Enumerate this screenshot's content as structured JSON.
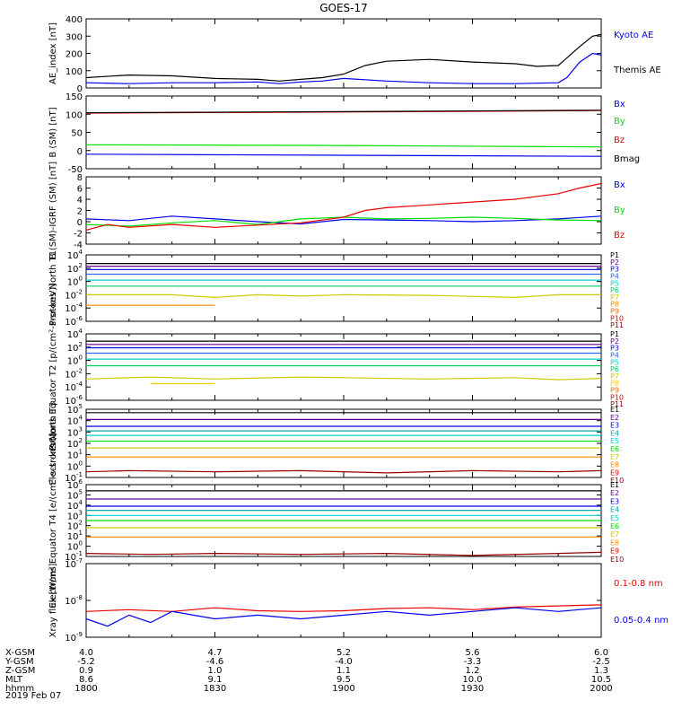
{
  "title": "GOES-17",
  "date": "2019 Feb 07",
  "colors": {
    "black": "#000000",
    "blue": "#0000ee",
    "green": "#00dd00",
    "red": "#ee0000",
    "cyan": "#00cccc",
    "teal": "#00aaaa",
    "yellow": "#cccc00",
    "orange": "#ff8800",
    "purple": "#660099",
    "darkred": "#990000"
  },
  "footer": {
    "row_labels": [
      "X-GSM",
      "Y-GSM",
      "Z-GSM",
      "MLT",
      "hhmm"
    ],
    "columns": [
      {
        "x": "1800",
        "values": [
          "4.0",
          "-5.2",
          "0.9",
          "8.6",
          "1800"
        ]
      },
      {
        "x": "1830",
        "values": [
          "4.7",
          "-4.6",
          "1.0",
          "9.1",
          "1830"
        ]
      },
      {
        "x": "1900",
        "values": [
          "5.2",
          "-4.0",
          "1.1",
          "9.5",
          "1900"
        ]
      },
      {
        "x": "1930",
        "values": [
          "5.6",
          "-3.3",
          "1.2",
          "10.0",
          "1930"
        ]
      },
      {
        "x": "2000",
        "values": [
          "6.0",
          "-2.5",
          "1.3",
          "10.5",
          "2000"
        ]
      }
    ]
  },
  "chart_data": [
    {
      "type": "line",
      "ylabel": "AE_index [nT]",
      "ylim": [
        0,
        400
      ],
      "scale": "linear",
      "ticks": [
        "0",
        "100",
        "200",
        "300",
        "400"
      ],
      "xlim": [
        "1800",
        "2000"
      ],
      "legend_position": "right",
      "series": [
        {
          "name": "Kyoto AE",
          "color": "#0000ee",
          "x": [
            "1800",
            "1810",
            "1820",
            "1830",
            "1840",
            "1845",
            "1850",
            "1855",
            "1900",
            "1910",
            "1920",
            "1930",
            "1940",
            "1950",
            "1952",
            "1955",
            "1958",
            "2000"
          ],
          "values": [
            30,
            25,
            30,
            30,
            35,
            25,
            35,
            40,
            55,
            40,
            30,
            25,
            25,
            30,
            60,
            150,
            200,
            190
          ]
        },
        {
          "name": "Themis AE",
          "color": "#000000",
          "x": [
            "1800",
            "1810",
            "1820",
            "1830",
            "1840",
            "1845",
            "1850",
            "1855",
            "1900",
            "1905",
            "1910",
            "1920",
            "1930",
            "1940",
            "1945",
            "1950",
            "1955",
            "1958",
            "2000"
          ],
          "values": [
            60,
            75,
            70,
            55,
            50,
            40,
            50,
            60,
            80,
            130,
            155,
            165,
            150,
            140,
            125,
            130,
            240,
            300,
            310
          ]
        }
      ]
    },
    {
      "type": "line",
      "ylabel": "B (SM) [nT]",
      "ylim": [
        -50,
        150
      ],
      "scale": "linear",
      "ticks": [
        "-50",
        "0",
        "50",
        "100",
        "150"
      ],
      "xlim": [
        "1800",
        "2000"
      ],
      "legend_position": "right",
      "series": [
        {
          "name": "Bx",
          "color": "#0000ee",
          "x": [
            "1800",
            "1900",
            "2000"
          ],
          "values": [
            -10,
            -13,
            -16
          ]
        },
        {
          "name": "By",
          "color": "#00dd00",
          "x": [
            "1800",
            "1900",
            "2000"
          ],
          "values": [
            16,
            14,
            10
          ]
        },
        {
          "name": "Bz",
          "color": "#ee0000",
          "x": [
            "1800",
            "1900",
            "2000"
          ],
          "values": [
            103,
            106,
            110
          ]
        },
        {
          "name": "Bmag",
          "color": "#000000",
          "x": [
            "1800",
            "1900",
            "2000"
          ],
          "values": [
            104,
            107,
            111
          ]
        }
      ]
    },
    {
      "type": "line",
      "ylabel": "B (SM)-IGRF (SM) [nT]",
      "ylim": [
        -4,
        8
      ],
      "scale": "linear",
      "ticks": [
        "-4",
        "-2",
        "0",
        "2",
        "4",
        "6",
        "8"
      ],
      "xlim": [
        "1800",
        "2000"
      ],
      "legend_position": "right",
      "series": [
        {
          "name": "Bx",
          "color": "#0000ee",
          "x": [
            "1800",
            "1810",
            "1820",
            "1830",
            "1840",
            "1850",
            "1900",
            "1910",
            "1920",
            "1930",
            "1940",
            "1950",
            "2000"
          ],
          "values": [
            0.5,
            0.2,
            1.0,
            0.5,
            0,
            -0.4,
            0.4,
            0.3,
            0.2,
            0,
            0.2,
            0.5,
            1.0
          ]
        },
        {
          "name": "By",
          "color": "#00dd00",
          "x": [
            "1800",
            "1810",
            "1820",
            "1830",
            "1840",
            "1850",
            "1900",
            "1910",
            "1920",
            "1930",
            "1940",
            "1950",
            "2000"
          ],
          "values": [
            -0.5,
            -0.8,
            -0.2,
            0.2,
            -0.5,
            0.5,
            0.8,
            0.5,
            0.6,
            0.8,
            0.6,
            0.3,
            0.2
          ]
        },
        {
          "name": "Bz",
          "color": "#ee0000",
          "x": [
            "1800",
            "1805",
            "1810",
            "1820",
            "1830",
            "1840",
            "1850",
            "1900",
            "1905",
            "1910",
            "1920",
            "1930",
            "1940",
            "1950",
            "1955",
            "2000"
          ],
          "values": [
            -1.5,
            -0.5,
            -1.0,
            -0.5,
            -1.0,
            -0.6,
            -0.2,
            0.8,
            2.0,
            2.5,
            3.0,
            3.5,
            4.0,
            5.0,
            6.0,
            6.8
          ]
        }
      ]
    },
    {
      "type": "line",
      "ylabel": "Protons North T1",
      "ylim": [
        -6,
        4
      ],
      "scale": "log",
      "ticks": [
        "-6",
        "-4",
        "-2",
        "0",
        "2",
        "4"
      ],
      "xlim": [
        "1800",
        "2000"
      ],
      "legend_position": "right",
      "series": [
        {
          "name": "P1",
          "color": "#000000",
          "x": [
            "1800",
            "2000"
          ],
          "values": [
            2.7,
            2.7
          ]
        },
        {
          "name": "P2",
          "color": "#660099",
          "x": [
            "1800",
            "2000"
          ],
          "values": [
            2.3,
            2.3
          ]
        },
        {
          "name": "P3",
          "color": "#0000ee",
          "x": [
            "1800",
            "2000"
          ],
          "values": [
            1.8,
            1.8
          ]
        },
        {
          "name": "P4",
          "color": "#3366ff",
          "x": [
            "1800",
            "2000"
          ],
          "values": [
            1.1,
            1.1
          ]
        },
        {
          "name": "P5",
          "color": "#00cccc",
          "x": [
            "1800",
            "2000"
          ],
          "values": [
            0.2,
            0.2
          ]
        },
        {
          "name": "P6",
          "color": "#00cc66",
          "x": [
            "1800",
            "2000"
          ],
          "values": [
            -0.7,
            -0.7
          ]
        },
        {
          "name": "P7",
          "color": "#cccc00",
          "x": [
            "1800",
            "1820",
            "1830",
            "1840",
            "1850",
            "1900",
            "1920",
            "1940",
            "1950",
            "2000"
          ],
          "values": [
            -2.0,
            -2.0,
            -2.4,
            -2.0,
            -2.2,
            -2.0,
            -2.1,
            -2.4,
            -2.0,
            -2.0
          ]
        },
        {
          "name": "P8",
          "color": "#ff8800",
          "x": [
            "1800",
            "1815",
            "1830"
          ],
          "values": [
            -3.6,
            -3.6,
            -3.6
          ]
        }
      ]
    },
    {
      "type": "line",
      "ylabel": "Protons Equator T2 [p/(cm²-s-sr-keV)]",
      "ylim": [
        -6,
        4
      ],
      "scale": "log",
      "ticks": [
        "-6",
        "-4",
        "-2",
        "0",
        "2",
        "4"
      ],
      "xlim": [
        "1800",
        "2000"
      ],
      "legend_position": "right",
      "series": [
        {
          "name": "P1",
          "color": "#000000",
          "x": [
            "1800",
            "2000"
          ],
          "values": [
            2.9,
            2.9
          ]
        },
        {
          "name": "P2",
          "color": "#660099",
          "x": [
            "1800",
            "2000"
          ],
          "values": [
            2.4,
            2.4
          ]
        },
        {
          "name": "P3",
          "color": "#0000ee",
          "x": [
            "1800",
            "2000"
          ],
          "values": [
            1.9,
            1.9
          ]
        },
        {
          "name": "P4",
          "color": "#3366ff",
          "x": [
            "1800",
            "2000"
          ],
          "values": [
            1.1,
            1.1
          ]
        },
        {
          "name": "P5",
          "color": "#00cccc",
          "x": [
            "1800",
            "2000"
          ],
          "values": [
            0.2,
            0.2
          ]
        },
        {
          "name": "P6",
          "color": "#00cc66",
          "x": [
            "1800",
            "2000"
          ],
          "values": [
            -0.8,
            -0.8
          ]
        },
        {
          "name": "P7",
          "color": "#cccc00",
          "x": [
            "1800",
            "1815",
            "1830",
            "1850",
            "1900",
            "1920",
            "1940",
            "1950",
            "2000"
          ],
          "values": [
            -2.8,
            -2.5,
            -2.8,
            -2.5,
            -2.6,
            -2.8,
            -2.6,
            -2.9,
            -2.7
          ]
        },
        {
          "name": "P8",
          "color": "#ffcc00",
          "x": [
            "1815",
            "1830"
          ],
          "values": [
            -3.5,
            -3.5
          ]
        }
      ]
    },
    {
      "type": "line",
      "ylabel": "Electrons North T3",
      "ylim": [
        -1,
        5
      ],
      "scale": "log",
      "ticks": [
        "-1",
        "0",
        "1",
        "2",
        "3",
        "4",
        "5"
      ],
      "xlim": [
        "1800",
        "2000"
      ],
      "legend_position": "right",
      "series": [
        {
          "name": "E1",
          "color": "#000000",
          "x": [
            "1800",
            "2000"
          ],
          "values": [
            4.7,
            4.7
          ]
        },
        {
          "name": "E2",
          "color": "#660099",
          "x": [
            "1800",
            "2000"
          ],
          "values": [
            4.1,
            4.1
          ]
        },
        {
          "name": "E3",
          "color": "#0000ee",
          "x": [
            "1800",
            "2000"
          ],
          "values": [
            3.5,
            3.5
          ]
        },
        {
          "name": "E4",
          "color": "#00aaaa",
          "x": [
            "1800",
            "2000"
          ],
          "values": [
            3.1,
            3.1
          ]
        },
        {
          "name": "E5",
          "color": "#00cccc",
          "x": [
            "1800",
            "2000"
          ],
          "values": [
            2.7,
            2.7
          ]
        },
        {
          "name": "E6",
          "color": "#00dd00",
          "x": [
            "1800",
            "2000"
          ],
          "values": [
            2.2,
            2.2
          ]
        },
        {
          "name": "E7",
          "color": "#cccc00",
          "x": [
            "1800",
            "2000"
          ],
          "values": [
            1.6,
            1.6
          ]
        },
        {
          "name": "E8",
          "color": "#ff8800",
          "x": [
            "1800",
            "2000"
          ],
          "values": [
            0.8,
            0.8
          ]
        },
        {
          "name": "E9",
          "color": "#990000",
          "x": [
            "1800",
            "1810",
            "1830",
            "1850",
            "1910",
            "1930",
            "1950",
            "2000"
          ],
          "values": [
            -0.5,
            -0.4,
            -0.5,
            -0.4,
            -0.6,
            -0.4,
            -0.5,
            -0.4
          ]
        }
      ]
    },
    {
      "type": "line",
      "ylabel": "Electrons Equator T4 [e/(cm²-s-sr-keV)]",
      "ylim": [
        -1,
        6
      ],
      "scale": "log",
      "ticks": [
        "-1",
        "0",
        "1",
        "2",
        "3",
        "4",
        "5",
        "6"
      ],
      "xlim": [
        "1800",
        "2000"
      ],
      "legend_position": "right",
      "series": [
        {
          "name": "E1",
          "color": "#000000",
          "x": [
            "1800",
            "2000"
          ],
          "values": [
            5.4,
            5.4
          ]
        },
        {
          "name": "E2",
          "color": "#660099",
          "x": [
            "1800",
            "2000"
          ],
          "values": [
            4.6,
            4.6
          ]
        },
        {
          "name": "E3",
          "color": "#0000ee",
          "x": [
            "1800",
            "2000"
          ],
          "values": [
            3.9,
            3.9
          ]
        },
        {
          "name": "E4",
          "color": "#00aaaa",
          "x": [
            "1800",
            "2000"
          ],
          "values": [
            3.5,
            3.5
          ]
        },
        {
          "name": "E5",
          "color": "#00cccc",
          "x": [
            "1800",
            "2000"
          ],
          "values": [
            3.0,
            3.0
          ]
        },
        {
          "name": "E6",
          "color": "#00dd00",
          "x": [
            "1800",
            "2000"
          ],
          "values": [
            2.5,
            2.5
          ]
        },
        {
          "name": "E7",
          "color": "#cccc00",
          "x": [
            "1800",
            "2000"
          ],
          "values": [
            1.8,
            1.8
          ]
        },
        {
          "name": "E8",
          "color": "#ff8800",
          "x": [
            "1800",
            "2000"
          ],
          "values": [
            0.9,
            0.9
          ]
        },
        {
          "name": "E9",
          "color": "#990000",
          "x": [
            "1800",
            "1815",
            "1830",
            "1850",
            "1910",
            "1930",
            "1950",
            "2000"
          ],
          "values": [
            -0.7,
            -0.8,
            -0.7,
            -0.8,
            -0.7,
            -0.9,
            -0.7,
            -0.6
          ]
        }
      ]
    },
    {
      "type": "line",
      "ylabel": "Xray flux [W/m²]",
      "ylim": [
        -9,
        -7
      ],
      "scale": "log",
      "ticks": [
        "-9",
        "-8",
        "-7"
      ],
      "xlim": [
        "1800",
        "2000"
      ],
      "legend_position": "right",
      "series": [
        {
          "name": "0.1-0.8 nm",
          "color": "#ee0000",
          "x": [
            "1800",
            "1810",
            "1820",
            "1830",
            "1840",
            "1850",
            "1900",
            "1910",
            "1920",
            "1930",
            "1940",
            "1950",
            "2000"
          ],
          "values": [
            -8.3,
            -8.25,
            -8.3,
            -8.2,
            -8.28,
            -8.3,
            -8.28,
            -8.22,
            -8.2,
            -8.25,
            -8.18,
            -8.15,
            -8.12
          ]
        },
        {
          "name": "0.05-0.4 nm",
          "color": "#0000ee",
          "x": [
            "1800",
            "1805",
            "1810",
            "1815",
            "1820",
            "1830",
            "1840",
            "1850",
            "1900",
            "1910",
            "1920",
            "1930",
            "1940",
            "1950",
            "2000"
          ],
          "values": [
            -8.5,
            -8.7,
            -8.4,
            -8.6,
            -8.3,
            -8.5,
            -8.4,
            -8.5,
            -8.4,
            -8.3,
            -8.4,
            -8.3,
            -8.2,
            -8.3,
            -8.2
          ]
        }
      ]
    }
  ]
}
